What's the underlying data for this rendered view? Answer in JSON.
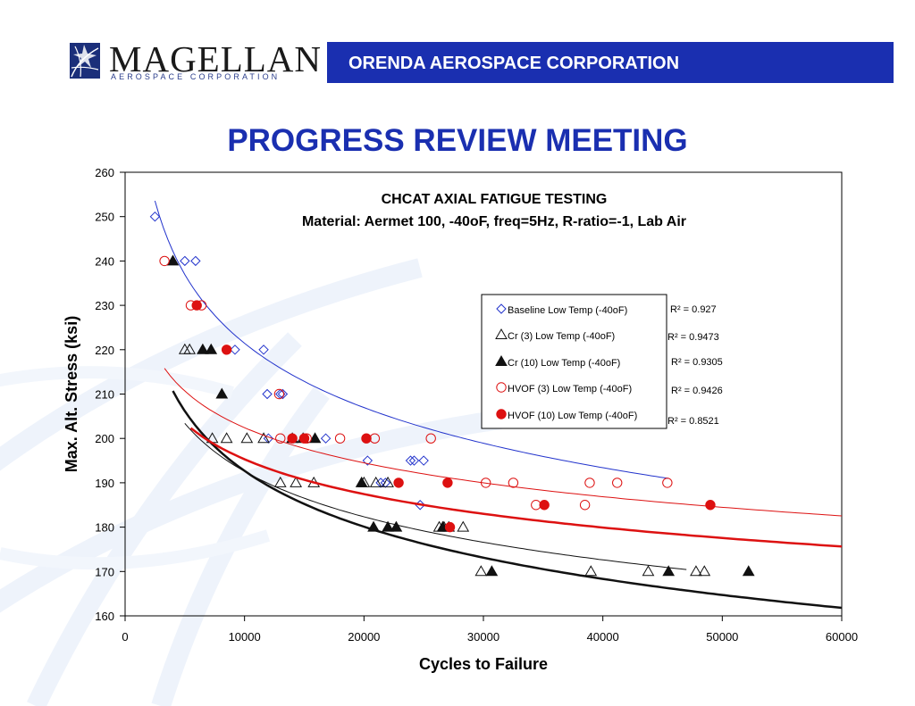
{
  "header": {
    "logo_name": "MAGELLAN",
    "logo_subtitle": "AEROSPACE CORPORATION",
    "banner_text": "ORENDA AEROSPACE CORPORATION",
    "banner_color": "#1a2fb0"
  },
  "page_title": "PROGRESS REVIEW MEETING",
  "chart_data": {
    "type": "scatter",
    "title": "CHCAT AXIAL FATIGUE TESTING",
    "subtitle": "Material: Aermet 100, -40oF, freq=5Hz, R-ratio=-1, Lab Air",
    "xlabel": "Cycles to Failure",
    "ylabel": "Max. Alt. Stress (ksi)",
    "xlim": [
      0,
      60000
    ],
    "ylim": [
      160,
      260
    ],
    "xticks": [
      0,
      10000,
      20000,
      30000,
      40000,
      50000,
      60000
    ],
    "yticks": [
      160,
      170,
      180,
      190,
      200,
      210,
      220,
      230,
      240,
      250,
      260
    ],
    "grid": false,
    "legend_position": "center-right",
    "series": [
      {
        "name": "Baseline Low Temp (-40oF)",
        "marker": "diamond-open",
        "color": "#2233cc",
        "r2": "R² = 0.927",
        "points": [
          [
            2500,
            250
          ],
          [
            5000,
            240
          ],
          [
            5900,
            240
          ],
          [
            9200,
            220
          ],
          [
            11600,
            220
          ],
          [
            11900,
            210
          ],
          [
            12000,
            200
          ],
          [
            13000,
            210
          ],
          [
            13200,
            210
          ],
          [
            16800,
            200
          ],
          [
            20300,
            195
          ],
          [
            21400,
            190
          ],
          [
            21800,
            190
          ],
          [
            23900,
            195
          ],
          [
            24200,
            195
          ],
          [
            25000,
            195
          ],
          [
            24700,
            185
          ]
        ],
        "trend": {
          "a": 544.6,
          "b": -0.0977,
          "x_from": 2500,
          "x_to": 45500,
          "width": 1
        }
      },
      {
        "name": "Cr (3) Low Temp (-40oF)",
        "marker": "triangle-open",
        "color": "#111111",
        "r2": "R² = 0.9473",
        "points": [
          [
            5000,
            220
          ],
          [
            5400,
            220
          ],
          [
            7300,
            200
          ],
          [
            8500,
            200
          ],
          [
            10200,
            200
          ],
          [
            11600,
            200
          ],
          [
            13000,
            190
          ],
          [
            14300,
            190
          ],
          [
            15800,
            190
          ],
          [
            20000,
            190
          ],
          [
            21000,
            190
          ],
          [
            22000,
            190
          ],
          [
            26300,
            180
          ],
          [
            26700,
            180
          ],
          [
            28300,
            180
          ],
          [
            29800,
            170
          ],
          [
            39000,
            170
          ],
          [
            43800,
            170
          ],
          [
            47800,
            170
          ],
          [
            48500,
            170
          ]
        ],
        "trend": {
          "a": 398.3,
          "b": -0.0789,
          "x_from": 5000,
          "x_to": 47000,
          "width": 1
        }
      },
      {
        "name": "Cr (10) Low Temp (-40oF)",
        "marker": "triangle-filled",
        "color": "#111111",
        "r2": "R² = 0.9305",
        "points": [
          [
            4000,
            240
          ],
          [
            6500,
            220
          ],
          [
            7200,
            220
          ],
          [
            8100,
            210
          ],
          [
            14000,
            200
          ],
          [
            14900,
            200
          ],
          [
            15900,
            200
          ],
          [
            19800,
            190
          ],
          [
            20800,
            180
          ],
          [
            22000,
            180
          ],
          [
            22700,
            180
          ],
          [
            26600,
            180
          ],
          [
            27100,
            180
          ],
          [
            30700,
            170
          ],
          [
            45500,
            170
          ],
          [
            52200,
            170
          ]
        ],
        "trend": {
          "a": 473.0,
          "b": -0.0975,
          "x_from": 4000,
          "x_to": 60000,
          "width": 2.5
        }
      },
      {
        "name": "HVOF (3) Low Temp (-40oF)",
        "marker": "circle-open",
        "color": "#dd1111",
        "r2": "R² = 0.9426",
        "points": [
          [
            3300,
            240
          ],
          [
            5500,
            230
          ],
          [
            6400,
            230
          ],
          [
            12900,
            210
          ],
          [
            13000,
            200
          ],
          [
            15200,
            200
          ],
          [
            18000,
            200
          ],
          [
            20900,
            200
          ],
          [
            25600,
            200
          ],
          [
            30200,
            190
          ],
          [
            32500,
            190
          ],
          [
            34400,
            185
          ],
          [
            38500,
            185
          ],
          [
            38900,
            190
          ],
          [
            41200,
            190
          ],
          [
            45400,
            190
          ]
        ],
        "trend": {
          "a": 344.4,
          "b": -0.0577,
          "x_from": 3300,
          "x_to": 60000,
          "width": 1
        }
      },
      {
        "name": "HVOF (10) Low Temp (-40oF)",
        "marker": "circle-filled",
        "color": "#dd1111",
        "r2": "R² = 0.8521",
        "points": [
          [
            6000,
            230
          ],
          [
            8500,
            220
          ],
          [
            14000,
            200
          ],
          [
            15000,
            200
          ],
          [
            20200,
            200
          ],
          [
            22900,
            190
          ],
          [
            27000,
            190
          ],
          [
            35100,
            185
          ],
          [
            27200,
            180
          ],
          [
            49000,
            185
          ]
        ],
        "trend": {
          "a": 336.9,
          "b": -0.0592,
          "x_from": 5500,
          "x_to": 60000,
          "width": 2.5
        }
      }
    ]
  }
}
